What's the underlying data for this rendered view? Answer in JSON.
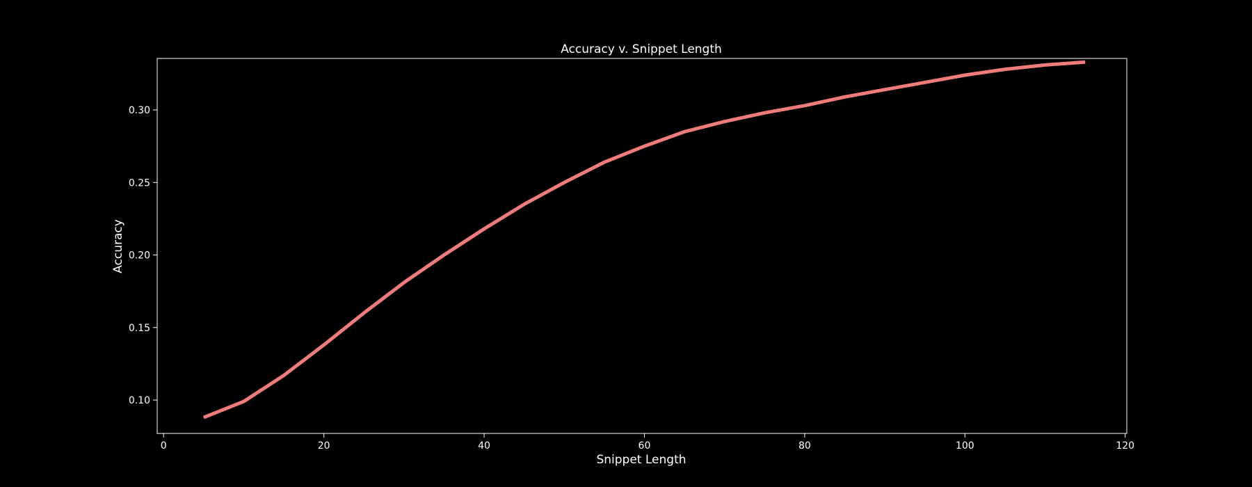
{
  "chart_data": {
    "type": "line",
    "title": "Accuracy v. Snippet Length",
    "xlabel": "Snippet Length",
    "ylabel": "Accuracy",
    "xlim": [
      -0.8,
      120.2
    ],
    "ylim": [
      0.077,
      0.3355
    ],
    "xticks": [
      0,
      20,
      40,
      60,
      80,
      100,
      120
    ],
    "xtick_labels": [
      "0",
      "20",
      "40",
      "60",
      "80",
      "100",
      "120"
    ],
    "yticks": [
      0.1,
      0.15,
      0.2,
      0.25,
      0.3
    ],
    "ytick_labels": [
      "0.10",
      "0.15",
      "0.20",
      "0.25",
      "0.30"
    ],
    "grid": false,
    "series": [
      {
        "color": "#f07b7b",
        "x": [
          5,
          10,
          15,
          20,
          25,
          30,
          35,
          40,
          45,
          50,
          55,
          60,
          65,
          70,
          75,
          80,
          85,
          90,
          95,
          100,
          105,
          110,
          115
        ],
        "y": [
          0.088,
          0.099,
          0.117,
          0.138,
          0.16,
          0.181,
          0.2,
          0.218,
          0.235,
          0.25,
          0.264,
          0.275,
          0.285,
          0.292,
          0.298,
          0.303,
          0.309,
          0.314,
          0.319,
          0.324,
          0.328,
          0.331,
          0.333
        ]
      }
    ]
  },
  "colors": {
    "background": "#000000",
    "axes": "#ffffff",
    "text": "#ffffff",
    "line": "#f07b7b"
  }
}
